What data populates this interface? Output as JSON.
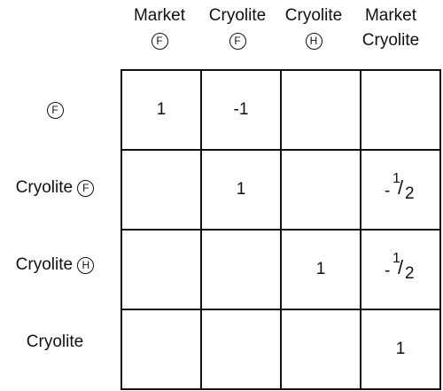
{
  "columns": [
    {
      "line1": "Market",
      "line2_circle": "F",
      "line2": ""
    },
    {
      "line1": "Cryolite",
      "line2_circle": "F",
      "line2": ""
    },
    {
      "line1": "Cryolite",
      "line2_circle": "H",
      "line2": ""
    },
    {
      "line1": "Market",
      "line2_circle": "",
      "line2": "Cryolite"
    }
  ],
  "rows": [
    {
      "label": "",
      "circle": "F"
    },
    {
      "label": "Cryolite",
      "circle": "F"
    },
    {
      "label": "Cryolite",
      "circle": "H"
    },
    {
      "label": "Cryolite",
      "circle": ""
    }
  ],
  "cells": [
    [
      "1",
      "-1",
      "",
      ""
    ],
    [
      "",
      "1",
      "",
      "-1/2"
    ],
    [
      "",
      "",
      "1",
      "-1/2"
    ],
    [
      "",
      "",
      "",
      "1"
    ]
  ],
  "fraction": {
    "sign": "-",
    "numerator": "1",
    "slash": "/",
    "denominator": "2"
  }
}
